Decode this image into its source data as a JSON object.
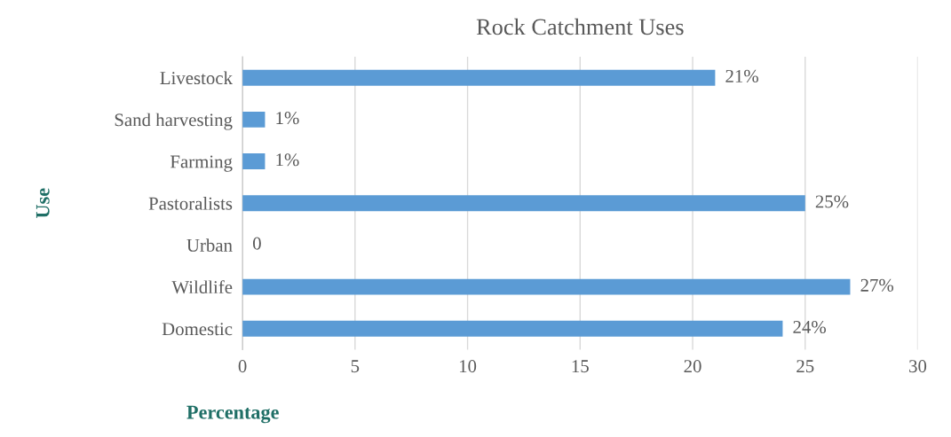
{
  "chart_data": {
    "type": "bar",
    "orientation": "horizontal",
    "title": "Rock Catchment Uses",
    "xlabel": "Percentage",
    "ylabel": "Use",
    "categories": [
      "Livestock",
      "Sand harvesting",
      "Farming",
      "Pastoralists",
      "Urban",
      "Wildlife",
      "Domestic"
    ],
    "values": [
      21,
      1,
      1,
      25,
      0,
      27,
      24
    ],
    "value_labels": [
      "21%",
      "1%",
      "1%",
      "25%",
      "0",
      "27%",
      "24%"
    ],
    "color": "#5b9bd5",
    "xlim": [
      0,
      30
    ],
    "xticks": [
      0,
      5,
      10,
      15,
      20,
      25,
      30
    ],
    "grid": "x",
    "legend": false
  }
}
